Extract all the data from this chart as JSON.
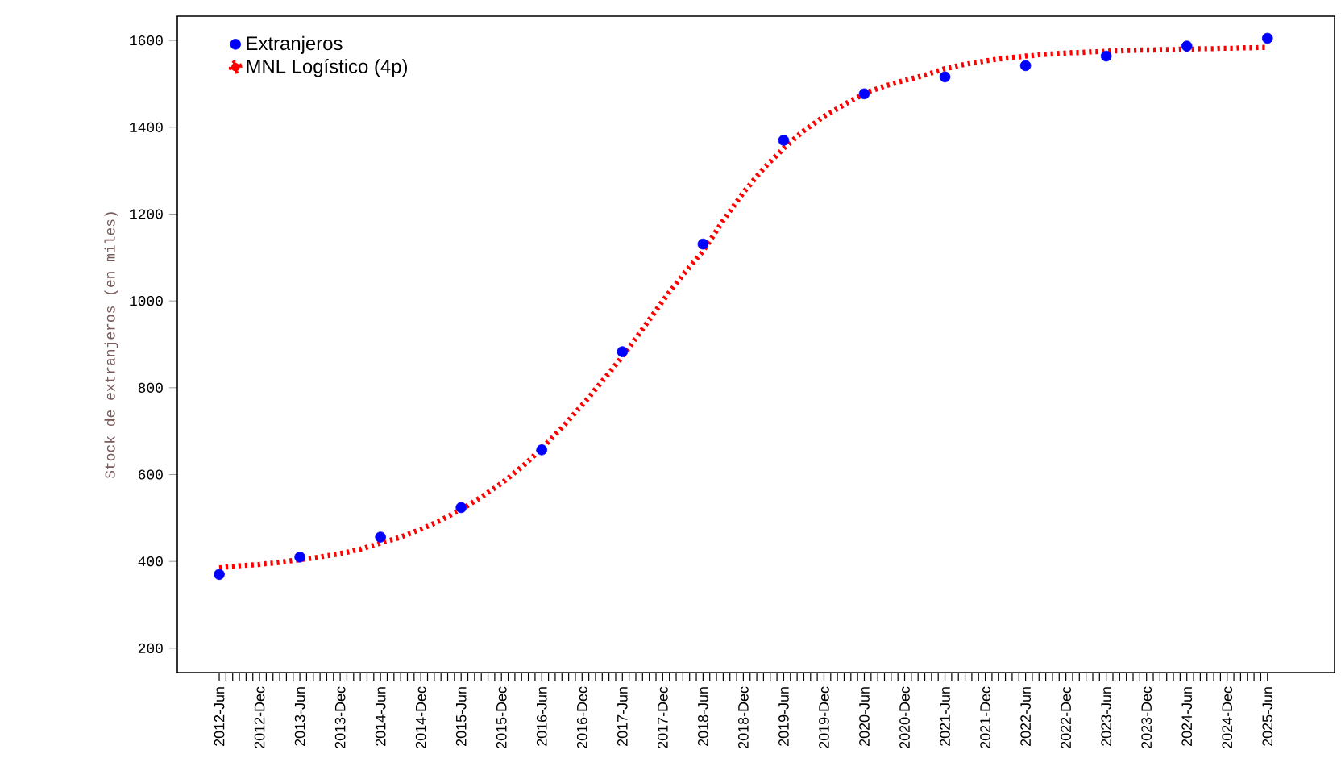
{
  "chart_data": {
    "type": "scatter",
    "ylabel": "Stock de extranjeros (en miles)",
    "categories": [
      "2012-Jun",
      null,
      null,
      null,
      null,
      null,
      "2012-Dec",
      null,
      null,
      null,
      null,
      null,
      "2013-Jun",
      null,
      null,
      null,
      null,
      null,
      "2013-Dec",
      null,
      null,
      null,
      null,
      null,
      "2014-Jun",
      null,
      null,
      null,
      null,
      null,
      "2014-Dec",
      null,
      null,
      null,
      null,
      null,
      "2015-Jun",
      null,
      null,
      null,
      null,
      null,
      "2015-Dec",
      null,
      null,
      null,
      null,
      null,
      "2016-Jun",
      null,
      null,
      null,
      null,
      null,
      "2016-Dec",
      null,
      null,
      null,
      null,
      null,
      "2017-Jun",
      null,
      null,
      null,
      null,
      null,
      "2017-Dec",
      null,
      null,
      null,
      null,
      null,
      "2018-Jun",
      null,
      null,
      null,
      null,
      null,
      "2018-Dec",
      null,
      null,
      null,
      null,
      null,
      "2019-Jun",
      null,
      null,
      null,
      null,
      null,
      "2019-Dec",
      null,
      null,
      null,
      null,
      null,
      "2020-Jun",
      null,
      null,
      null,
      null,
      null,
      "2020-Dec",
      null,
      null,
      null,
      null,
      null,
      "2021-Jun",
      null,
      null,
      null,
      null,
      null,
      "2021-Dec",
      null,
      null,
      null,
      null,
      null,
      "2022-Jun",
      null,
      null,
      null,
      null,
      null,
      "2022-Dec",
      null,
      null,
      null,
      null,
      null,
      "2023-Jun",
      null,
      null,
      null,
      null,
      null,
      "2023-Dec",
      null,
      null,
      null,
      null,
      null,
      "2024-Jun",
      null,
      null,
      null,
      null,
      null,
      "2024-Dec",
      null,
      null,
      null,
      null,
      null,
      "2025-Jun"
    ],
    "ylim": [
      144,
      1656
    ],
    "yticks": [
      200,
      400,
      600,
      800,
      1000,
      1200,
      1400,
      1600
    ],
    "legend": "top left",
    "grid": false,
    "series": [
      {
        "name": "Extranjeros",
        "marker": "circle",
        "color": "#0000ff",
        "values": [
          370,
          null,
          null,
          null,
          null,
          null,
          null,
          null,
          null,
          null,
          null,
          null,
          410,
          null,
          null,
          null,
          null,
          null,
          null,
          null,
          null,
          null,
          null,
          null,
          456,
          null,
          null,
          null,
          null,
          null,
          null,
          null,
          null,
          null,
          null,
          null,
          524,
          null,
          null,
          null,
          null,
          null,
          null,
          null,
          null,
          null,
          null,
          null,
          657,
          null,
          null,
          null,
          null,
          null,
          null,
          null,
          null,
          null,
          null,
          null,
          883,
          null,
          null,
          null,
          null,
          null,
          null,
          null,
          null,
          null,
          null,
          null,
          1131,
          null,
          null,
          null,
          null,
          null,
          null,
          null,
          null,
          null,
          null,
          null,
          1370,
          null,
          null,
          null,
          null,
          null,
          null,
          null,
          null,
          null,
          null,
          null,
          1477,
          null,
          null,
          null,
          null,
          null,
          null,
          null,
          null,
          null,
          null,
          null,
          1516,
          null,
          null,
          null,
          null,
          null,
          null,
          null,
          null,
          null,
          null,
          null,
          1542,
          null,
          null,
          null,
          null,
          null,
          null,
          null,
          null,
          null,
          null,
          null,
          1564,
          null,
          null,
          null,
          null,
          null,
          null,
          null,
          null,
          null,
          null,
          null,
          1587,
          null,
          null,
          null,
          null,
          null,
          null,
          null,
          null,
          null,
          null,
          null,
          1605
        ]
      },
      {
        "name": "MNL Logístico (4p)",
        "type": "line",
        "line_style": "dotted",
        "color": "#ff0000",
        "values": [
          385,
          387,
          388,
          390,
          391,
          392,
          393,
          395,
          396,
          398,
          400,
          402,
          404,
          406,
          408,
          410,
          413,
          415,
          418,
          421,
          425,
          428,
          433,
          437,
          442,
          447,
          451,
          456,
          462,
          468,
          474,
          481,
          488,
          495,
          503,
          512,
          520,
          529,
          539,
          548,
          559,
          569,
          580,
          592,
          605,
          617,
          631,
          646,
          660,
          676,
          692,
          708,
          725,
          743,
          760,
          778,
          797,
          815,
          834,
          853,
          872,
          893,
          914,
          935,
          957,
          978,
          1000,
          1020,
          1040,
          1060,
          1078,
          1097,
          1115,
          1138,
          1162,
          1185,
          1207,
          1228,
          1250,
          1268,
          1287,
          1305,
          1321,
          1336,
          1352,
          1365,
          1379,
          1392,
          1403,
          1414,
          1425,
          1434,
          1443,
          1452,
          1461,
          1469,
          1478,
          1484,
          1489,
          1495,
          1499,
          1504,
          1508,
          1512,
          1516,
          1520,
          1525,
          1530,
          1535,
          1538,
          1542,
          1545,
          1548,
          1550,
          1553,
          1555,
          1557,
          1559,
          1561,
          1562,
          1564,
          1565,
          1567,
          1568,
          1569,
          1570,
          1571,
          1572,
          1572,
          1573,
          1574,
          1574,
          1575,
          1576,
          1576,
          1577,
          1577,
          1578,
          1578,
          1578,
          1579,
          1579,
          1579,
          1580,
          1580,
          1580,
          1581,
          1581,
          1581,
          1582,
          1582,
          1582,
          1583,
          1583,
          1583,
          1584,
          1584
        ]
      }
    ]
  }
}
